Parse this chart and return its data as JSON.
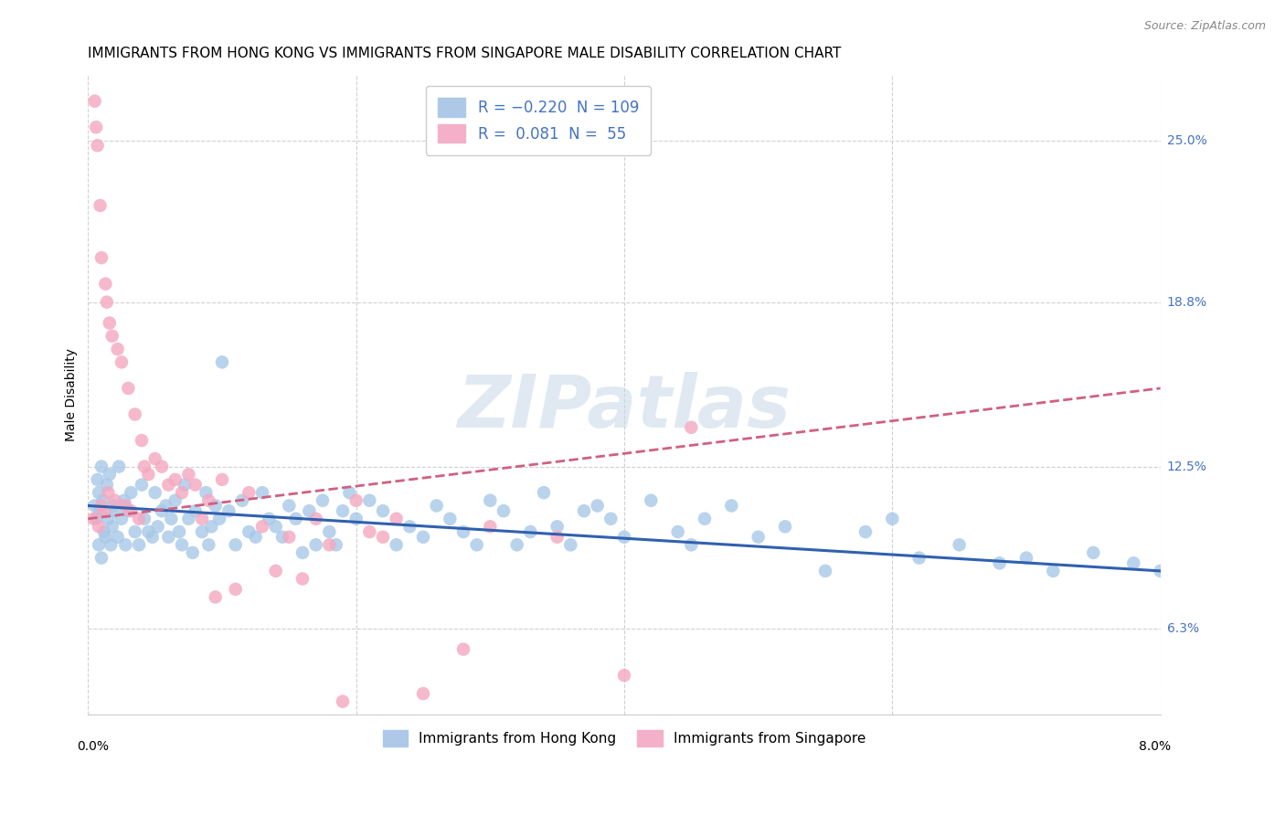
{
  "title": "IMMIGRANTS FROM HONG KONG VS IMMIGRANTS FROM SINGAPORE MALE DISABILITY CORRELATION CHART",
  "source": "Source: ZipAtlas.com",
  "ylabel": "Male Disability",
  "yticks": [
    6.3,
    12.5,
    18.8,
    25.0
  ],
  "ytick_labels": [
    "6.3%",
    "12.5%",
    "18.8%",
    "25.0%"
  ],
  "xmin": 0.0,
  "xmax": 8.0,
  "ymin": 3.0,
  "ymax": 27.5,
  "watermark": "ZIPatlas",
  "hk_color": "#a8c8e8",
  "sg_color": "#f4a8c0",
  "hk_line_color": "#3060b0",
  "sg_line_color": "#d06080",
  "grid_color": "#d0d0d0",
  "background_color": "#ffffff",
  "title_fontsize": 11,
  "axis_label_fontsize": 10,
  "tick_fontsize": 10,
  "legend_fontsize": 11,
  "hk_x": [
    0.05,
    0.06,
    0.07,
    0.08,
    0.08,
    0.09,
    0.1,
    0.1,
    0.11,
    0.12,
    0.13,
    0.14,
    0.15,
    0.16,
    0.17,
    0.18,
    0.19,
    0.2,
    0.22,
    0.23,
    0.25,
    0.27,
    0.28,
    0.3,
    0.32,
    0.35,
    0.38,
    0.4,
    0.42,
    0.45,
    0.48,
    0.5,
    0.52,
    0.55,
    0.58,
    0.6,
    0.62,
    0.65,
    0.68,
    0.7,
    0.72,
    0.75,
    0.78,
    0.8,
    0.85,
    0.88,
    0.9,
    0.92,
    0.95,
    0.98,
    1.0,
    1.05,
    1.1,
    1.15,
    1.2,
    1.25,
    1.3,
    1.35,
    1.4,
    1.45,
    1.5,
    1.55,
    1.6,
    1.65,
    1.7,
    1.75,
    1.8,
    1.85,
    1.9,
    1.95,
    2.0,
    2.1,
    2.2,
    2.3,
    2.4,
    2.5,
    2.6,
    2.7,
    2.8,
    2.9,
    3.0,
    3.1,
    3.2,
    3.3,
    3.4,
    3.5,
    3.6,
    3.7,
    3.8,
    3.9,
    4.0,
    4.2,
    4.4,
    4.5,
    4.6,
    4.8,
    5.0,
    5.2,
    5.5,
    5.8,
    6.0,
    6.2,
    6.5,
    6.8,
    7.0,
    7.2,
    7.5,
    7.8,
    8.0
  ],
  "hk_y": [
    11.0,
    10.5,
    12.0,
    9.5,
    11.5,
    10.8,
    12.5,
    9.0,
    11.2,
    10.0,
    9.8,
    11.8,
    10.5,
    12.2,
    9.5,
    10.2,
    11.0,
    10.8,
    9.8,
    12.5,
    10.5,
    11.2,
    9.5,
    10.8,
    11.5,
    10.0,
    9.5,
    11.8,
    10.5,
    10.0,
    9.8,
    11.5,
    10.2,
    10.8,
    11.0,
    9.8,
    10.5,
    11.2,
    10.0,
    9.5,
    11.8,
    10.5,
    9.2,
    10.8,
    10.0,
    11.5,
    9.5,
    10.2,
    11.0,
    10.5,
    16.5,
    10.8,
    9.5,
    11.2,
    10.0,
    9.8,
    11.5,
    10.5,
    10.2,
    9.8,
    11.0,
    10.5,
    9.2,
    10.8,
    9.5,
    11.2,
    10.0,
    9.5,
    10.8,
    11.5,
    10.5,
    11.2,
    10.8,
    9.5,
    10.2,
    9.8,
    11.0,
    10.5,
    10.0,
    9.5,
    11.2,
    10.8,
    9.5,
    10.0,
    11.5,
    10.2,
    9.5,
    10.8,
    11.0,
    10.5,
    9.8,
    11.2,
    10.0,
    9.5,
    10.5,
    11.0,
    9.8,
    10.2,
    8.5,
    10.0,
    10.5,
    9.0,
    9.5,
    8.8,
    9.0,
    8.5,
    9.2,
    8.8,
    8.5
  ],
  "sg_x": [
    0.04,
    0.05,
    0.06,
    0.07,
    0.08,
    0.09,
    0.1,
    0.1,
    0.12,
    0.13,
    0.14,
    0.15,
    0.16,
    0.18,
    0.2,
    0.22,
    0.25,
    0.28,
    0.3,
    0.32,
    0.35,
    0.38,
    0.4,
    0.42,
    0.45,
    0.5,
    0.55,
    0.6,
    0.65,
    0.7,
    0.75,
    0.8,
    0.85,
    0.9,
    0.95,
    1.0,
    1.1,
    1.2,
    1.3,
    1.4,
    1.5,
    1.6,
    1.7,
    1.8,
    1.9,
    2.0,
    2.1,
    2.2,
    2.3,
    2.5,
    2.8,
    3.0,
    3.5,
    4.0,
    4.5
  ],
  "sg_y": [
    10.5,
    26.5,
    25.5,
    24.8,
    10.2,
    22.5,
    11.0,
    20.5,
    10.8,
    19.5,
    18.8,
    11.5,
    18.0,
    17.5,
    11.2,
    17.0,
    16.5,
    11.0,
    15.5,
    10.8,
    14.5,
    10.5,
    13.5,
    12.5,
    12.2,
    12.8,
    12.5,
    11.8,
    12.0,
    11.5,
    12.2,
    11.8,
    10.5,
    11.2,
    7.5,
    12.0,
    7.8,
    11.5,
    10.2,
    8.5,
    9.8,
    8.2,
    10.5,
    9.5,
    3.5,
    11.2,
    10.0,
    9.8,
    10.5,
    3.8,
    5.5,
    10.2,
    9.8,
    4.5,
    14.0
  ]
}
